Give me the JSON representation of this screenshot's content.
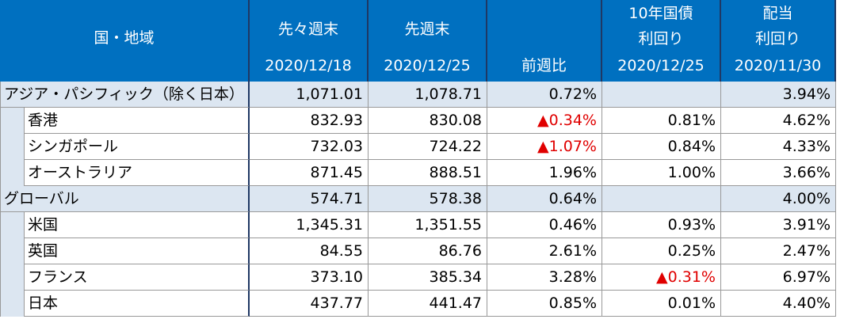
{
  "table": {
    "header": {
      "region": "国・地域",
      "columns": [
        [
          "先々週末",
          "2020/12/18"
        ],
        [
          "先週末",
          "2020/12/25"
        ],
        [
          "前週比"
        ],
        [
          "10年国債",
          "利回り",
          "2020/12/25"
        ],
        [
          "配当",
          "利回り",
          "2020/11/30"
        ]
      ]
    },
    "rows": [
      {
        "group": true,
        "cells": [
          "アジア・パシフィック（除く日本）",
          "1,071.01",
          "1,078.71",
          "0.72%",
          null,
          "3.94%"
        ]
      },
      {
        "group": false,
        "cells": [
          "香港",
          "832.93",
          "830.08",
          "▲0.34%",
          "0.81%",
          "4.62%"
        ]
      },
      {
        "group": false,
        "cells": [
          "シンガポール",
          "732.03",
          "724.22",
          "▲1.07%",
          "0.84%",
          "4.33%"
        ]
      },
      {
        "group": false,
        "cells": [
          "オーストラリア",
          "871.45",
          "888.51",
          "1.96%",
          "1.00%",
          "3.66%"
        ]
      },
      {
        "group": true,
        "cells": [
          "グローバル",
          "574.71",
          "578.38",
          "0.64%",
          null,
          "4.00%"
        ]
      },
      {
        "group": false,
        "cells": [
          "米国",
          "1,345.31",
          "1,351.55",
          "0.46%",
          "0.93%",
          "3.91%"
        ]
      },
      {
        "group": false,
        "cells": [
          "英国",
          "84.55",
          "86.76",
          "2.61%",
          "0.25%",
          "2.47%"
        ]
      },
      {
        "group": false,
        "cells": [
          "フランス",
          "373.10",
          "385.34",
          "3.28%",
          "▲0.31%",
          "6.97%"
        ]
      },
      {
        "group": false,
        "cells": [
          "日本",
          "437.77",
          "441.47",
          "0.85%",
          "0.01%",
          "4.40%"
        ]
      }
    ]
  }
}
